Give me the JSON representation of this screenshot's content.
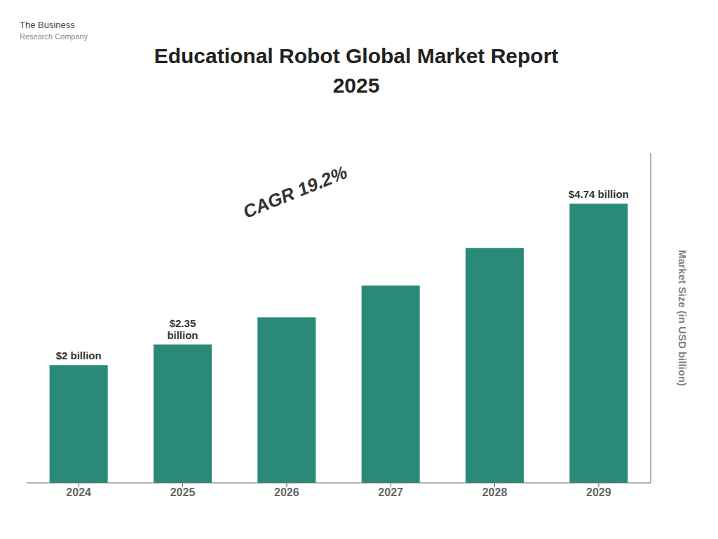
{
  "chart_data": {
    "type": "bar",
    "title": "Educational Robot Global Market Report",
    "subtitle": "2025",
    "categories": [
      "2024",
      "2025",
      "2026",
      "2027",
      "2028",
      "2029"
    ],
    "values": [
      2.0,
      2.35,
      2.81,
      3.35,
      3.99,
      4.74
    ],
    "color": "#2a8a7a",
    "y_label": "Market Size (in USD billion)",
    "ylim": [
      0,
      5.6
    ],
    "tick_labels": "x",
    "grid": false,
    "annotations": [
      {
        "text": "$2 billion",
        "category": "2024"
      },
      {
        "text": "$2.35\nbillion",
        "category": "2025"
      },
      {
        "text": "$4.74 billion",
        "category": "2029"
      },
      {
        "text": "CAGR 19.2%"
      },
      {
        "text": "The Business"
      },
      {
        "text": "Research Company"
      }
    ]
  }
}
